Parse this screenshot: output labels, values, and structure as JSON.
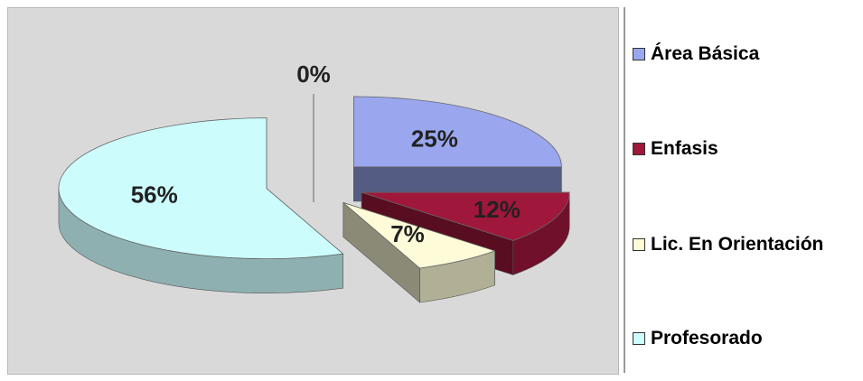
{
  "chart_data": {
    "type": "pie",
    "style": "3d-exploded",
    "categories": [
      "Área Básica",
      "Enfasis",
      "Lic. En Orientación",
      "Profesorado"
    ],
    "values": [
      25,
      12,
      7,
      56
    ],
    "data_labels": [
      "25%",
      "12%",
      "7%",
      "56%"
    ],
    "zero_label": "0%",
    "colors": {
      "Área Básica": "#9aa7ee",
      "Enfasis": "#a0173c",
      "Lic. En Orientación": "#fdfbd8",
      "Profesorado": "#ccfcfc"
    },
    "legend_position": "right",
    "title": "",
    "background": "#d9d9d9"
  },
  "legend": {
    "items": [
      {
        "label": "Área Básica",
        "color": "#9aa7ee"
      },
      {
        "label": "Enfasis",
        "color": "#a0173c"
      },
      {
        "label": "Lic. En Orientación",
        "color": "#fdfbd8"
      },
      {
        "label": "Profesorado",
        "color": "#ccfcfc"
      }
    ]
  }
}
